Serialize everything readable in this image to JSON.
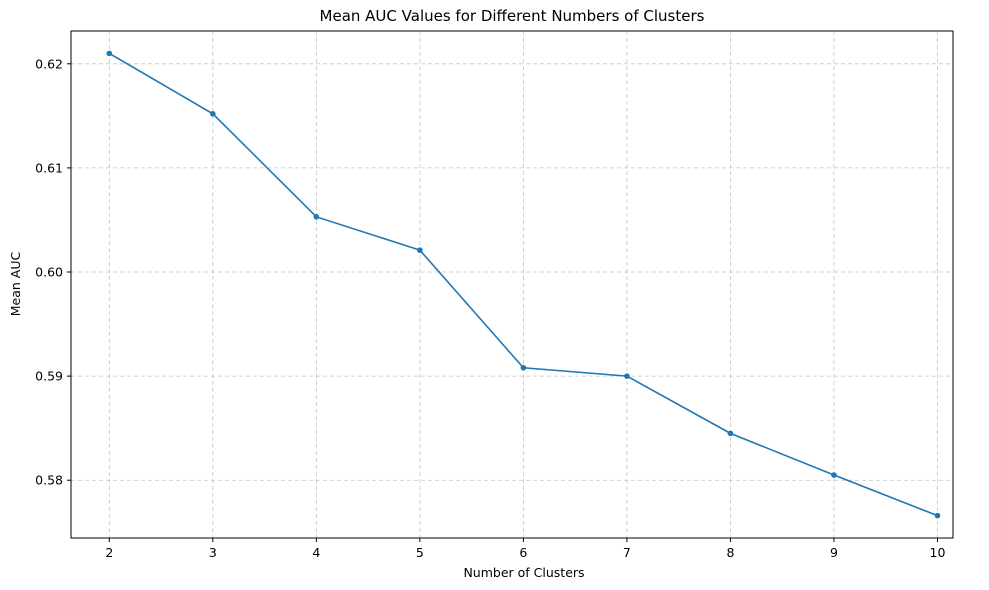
{
  "chart_data": {
    "type": "line",
    "title": "Mean AUC Values for Different Numbers of Clusters",
    "xlabel": "Number of Clusters",
    "ylabel": "Mean AUC",
    "x": [
      2,
      3,
      4,
      5,
      6,
      7,
      8,
      9,
      10
    ],
    "series": [
      {
        "values": [
          0.621,
          0.6152,
          0.6053,
          0.6021,
          0.5908,
          0.59,
          0.5845,
          0.5805,
          0.5766
        ],
        "color": "#1f77b4",
        "marker": "circle"
      }
    ],
    "xticks": [
      "2",
      "3",
      "4",
      "5",
      "6",
      "7",
      "8",
      "9",
      "10"
    ],
    "yticks": [
      "0.58",
      "0.59",
      "0.60",
      "0.61",
      "0.62"
    ],
    "xlim": [
      1.63,
      10.15
    ],
    "ylim": [
      0.57445,
      0.62315
    ],
    "grid": true,
    "legend": "none"
  }
}
